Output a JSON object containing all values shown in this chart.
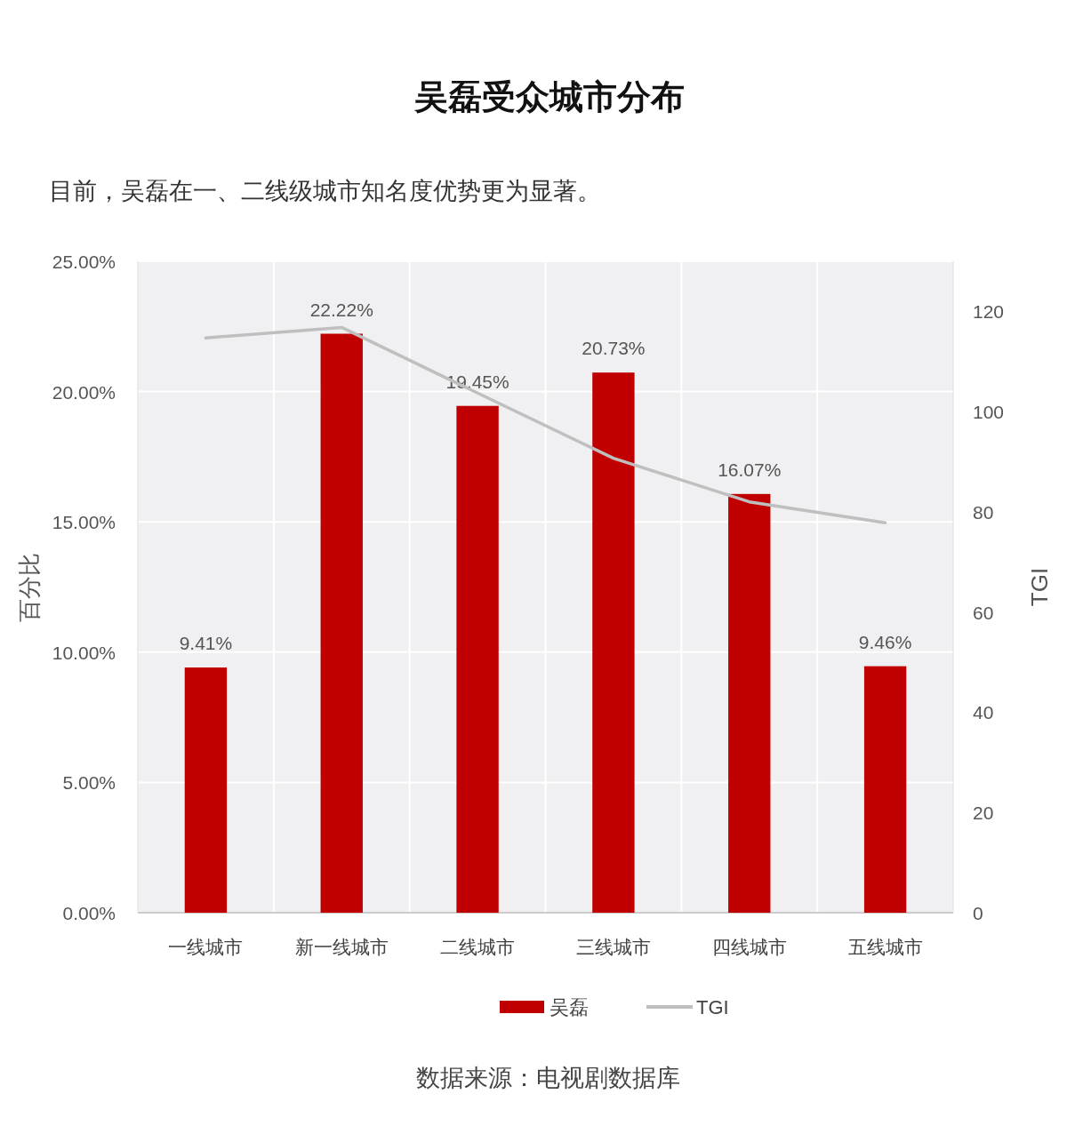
{
  "chart_data": {
    "type": "bar",
    "title": "吴磊受众城市分布",
    "subtitle": "目前，吴磊在一、二线级城市知名度优势更为显著。",
    "categories": [
      "一线城市",
      "新一线城市",
      "二线城市",
      "三线城市",
      "四线城市",
      "五线城市"
    ],
    "series": [
      {
        "name": "吴磊",
        "color": "#c00000",
        "values": [
          9.41,
          22.22,
          19.45,
          20.73,
          16.07,
          9.46
        ],
        "value_labels": [
          "9.41%",
          "22.22%",
          "19.45%",
          "20.73%",
          "16.07%",
          "9.46%"
        ]
      },
      {
        "name": "TGI",
        "type": "line",
        "axis": "y2",
        "color": "#bfbfbf",
        "values": [
          114.7,
          116.8,
          103.7,
          90.7,
          82,
          77.8
        ]
      }
    ],
    "ylabel": "百分比",
    "y2label": "TGI",
    "ylim": [
      0,
      25
    ],
    "yticks": [
      {
        "value": 0,
        "label": "0.00%"
      },
      {
        "value": 5,
        "label": "5.00%"
      },
      {
        "value": 10,
        "label": "10.00%"
      },
      {
        "value": 15,
        "label": "15.00%"
      },
      {
        "value": 20,
        "label": "20.00%"
      },
      {
        "value": 25,
        "label": "25.00%"
      }
    ],
    "y2lim": [
      0,
      130
    ],
    "y2ticks": [
      0,
      20,
      40,
      60,
      80,
      100,
      120
    ],
    "grid": true,
    "legend": "bottom",
    "line_style": "solid",
    "marker": "none",
    "annotations": [
      "数据来源：电视剧数据库"
    ]
  }
}
